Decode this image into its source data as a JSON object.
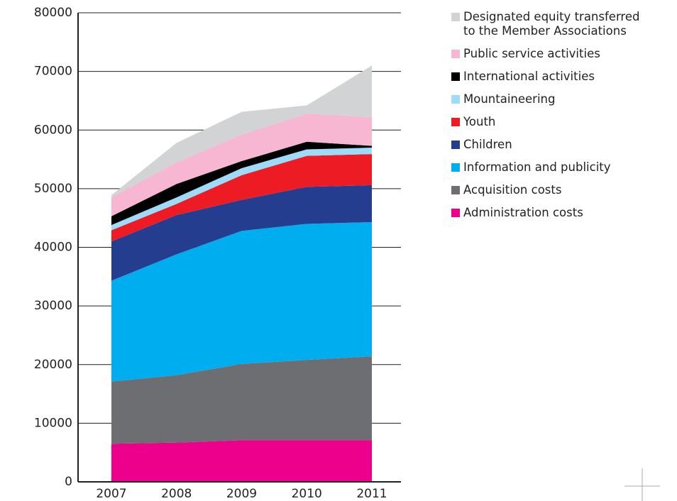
{
  "chart_data": {
    "type": "stacked_area",
    "categories": [
      "2007",
      "2008",
      "2009",
      "2010",
      "2011"
    ],
    "series": [
      {
        "name": "Administration costs",
        "color": "#ec008c",
        "values": [
          6500,
          6700,
          7100,
          7100,
          7100
        ]
      },
      {
        "name": "Acquisition costs",
        "color": "#6d6e71",
        "values": [
          10600,
          11500,
          13000,
          13700,
          14300
        ]
      },
      {
        "name": "Information and publicity",
        "color": "#00aeef",
        "values": [
          17200,
          20600,
          22700,
          23200,
          22900
        ]
      },
      {
        "name": "Children",
        "color": "#253d8e",
        "values": [
          6700,
          6700,
          5300,
          6300,
          6300
        ]
      },
      {
        "name": "Youth",
        "color": "#ed1c24",
        "values": [
          1900,
          1900,
          4200,
          5300,
          5300
        ]
      },
      {
        "name": "Mountaineering",
        "color": "#9ddcf9",
        "values": [
          900,
          1100,
          1200,
          1100,
          1100
        ]
      },
      {
        "name": "International activities",
        "color": "#000000",
        "values": [
          1500,
          2300,
          1200,
          1300,
          300
        ]
      },
      {
        "name": "Public service activities",
        "color": "#f7b6d2",
        "values": [
          3200,
          3700,
          4500,
          4800,
          4900
        ]
      },
      {
        "name": "Designated equity transferred to the Member Associations",
        "color": "#d1d3d4",
        "values": [
          400,
          3300,
          3900,
          1400,
          8800
        ]
      }
    ],
    "ylim": [
      0,
      80000
    ],
    "yticks": [
      0,
      10000,
      20000,
      30000,
      40000,
      50000,
      60000,
      70000,
      80000
    ],
    "grid": true
  }
}
